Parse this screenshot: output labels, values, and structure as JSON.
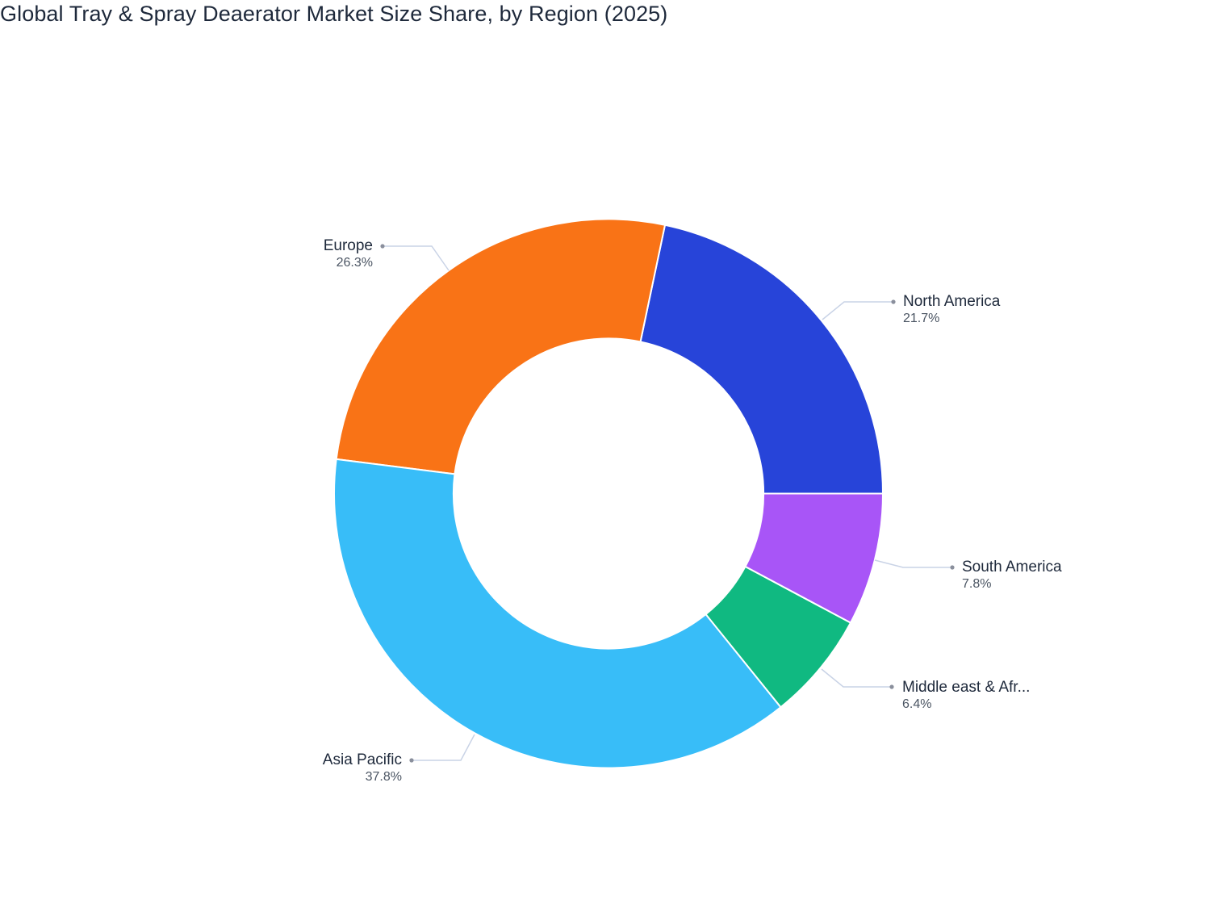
{
  "title": "Global Tray & Spray Deaerator Market Size Share, by Region (2025)",
  "chart_data": {
    "type": "pie",
    "subtype": "donut",
    "title": "Global Tray & Spray Deaerator Market Size Share, by Region (2025)",
    "hole_ratio": 0.565,
    "start_angle_deg": 0,
    "direction": "counterclockwise",
    "legend": "none (outside labels with leader lines)",
    "categories": [
      "North America",
      "Europe",
      "Asia Pacific",
      "Middle east & Afr...",
      "South America"
    ],
    "values": [
      21.7,
      26.3,
      37.8,
      6.4,
      7.8
    ],
    "unit": "%",
    "slices": [
      {
        "label": "North America",
        "value": 21.7,
        "pct_label": "21.7%",
        "color": "#2744D9"
      },
      {
        "label": "Europe",
        "value": 26.3,
        "pct_label": "26.3%",
        "color": "#F97316"
      },
      {
        "label": "Asia Pacific",
        "value": 37.8,
        "pct_label": "37.8%",
        "color": "#38BDF8"
      },
      {
        "label": "Middle east & Afr...",
        "value": 6.4,
        "pct_label": "6.4%",
        "color": "#10B981"
      },
      {
        "label": "South America",
        "value": 7.8,
        "pct_label": "7.8%",
        "color": "#A855F7"
      }
    ]
  }
}
